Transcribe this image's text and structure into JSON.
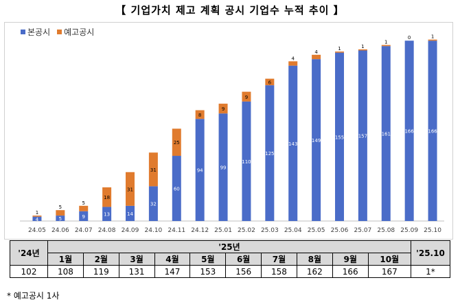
{
  "title": "【 기업가치 제고 계획 공시 기업수 누적 추이 】",
  "legend": {
    "main_label": "본공시",
    "pre_label": "예고공시",
    "main_color": "#4a6cc8",
    "pre_color": "#e07b2e"
  },
  "chart_data": {
    "type": "bar",
    "stacked": true,
    "categories": [
      "24.05",
      "24.06",
      "24.07",
      "24.08",
      "24.09",
      "24.10",
      "24.11",
      "24.12",
      "25.01",
      "25.02",
      "25.03",
      "25.04",
      "25.05",
      "25.06",
      "25.07",
      "25.08",
      "25.09",
      "25.10"
    ],
    "series": [
      {
        "name": "본공시",
        "values": [
          4,
          5,
          9,
          13,
          14,
          32,
          60,
          94,
          99,
          110,
          125,
          143,
          149,
          155,
          157,
          161,
          166,
          166
        ]
      },
      {
        "name": "예고공시",
        "values": [
          1,
          5,
          5,
          18,
          31,
          31,
          25,
          8,
          9,
          9,
          6,
          4,
          4,
          1,
          1,
          1,
          0,
          1
        ]
      }
    ],
    "ylim": [
      0,
      175
    ],
    "grid": false,
    "legend_position": "top-left"
  },
  "table": {
    "first_header": "'24년",
    "group_header": "'25년",
    "last_header": "'25.10",
    "months": [
      "1월",
      "2월",
      "3월",
      "4월",
      "5월",
      "6월",
      "7월",
      "8월",
      "9월",
      "10월"
    ],
    "first_value": "102",
    "month_values": [
      "108",
      "119",
      "131",
      "147",
      "153",
      "156",
      "158",
      "162",
      "166",
      "167"
    ],
    "last_value": "1*"
  },
  "footnote": "*  예고공시 1사"
}
